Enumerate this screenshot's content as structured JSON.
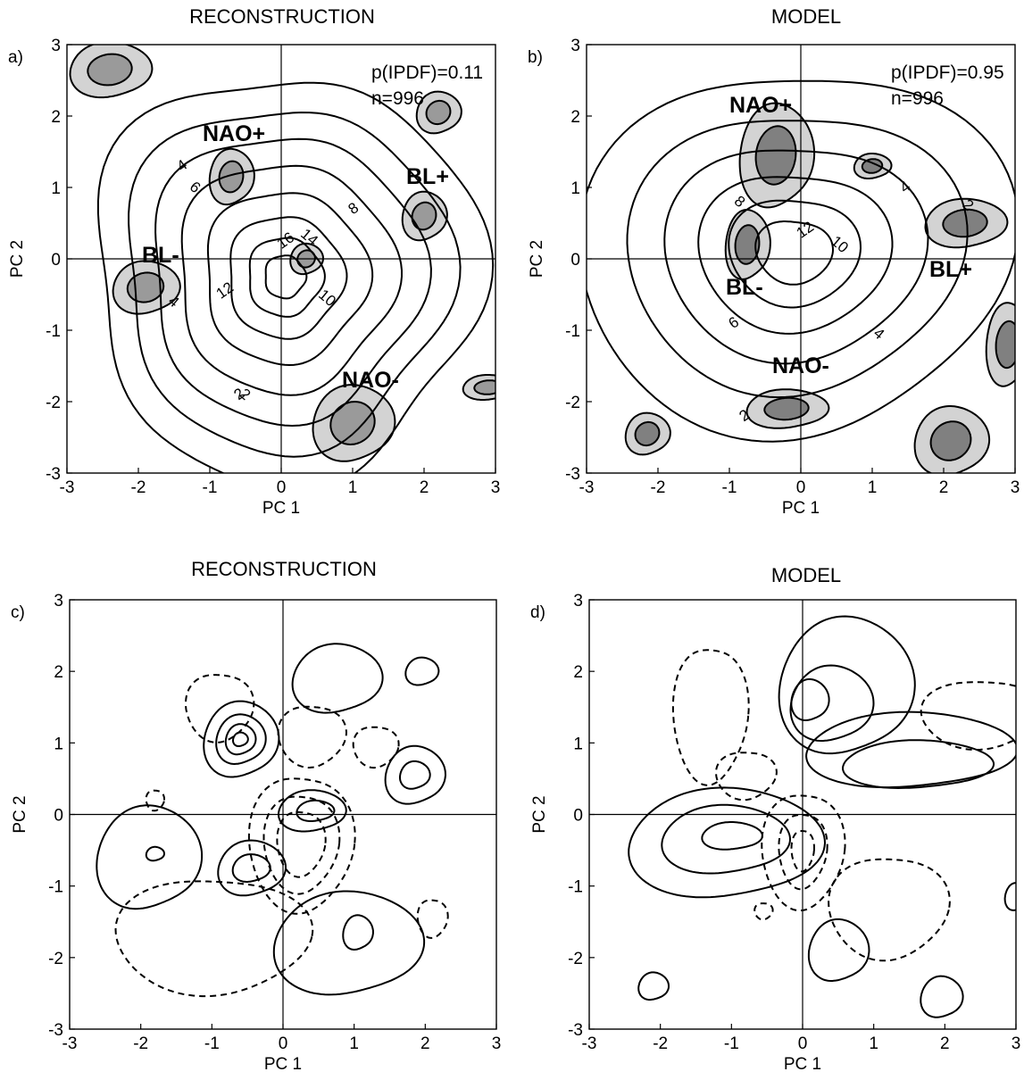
{
  "panels": [
    {
      "letter": "a)",
      "title": "RECONSTRUCTION",
      "xlabel": "PC 1",
      "ylabel": "PC 2",
      "annotations": [
        "p(IPDF)=0.11",
        "n=996"
      ],
      "regimes": [
        "NAO+",
        "BL+",
        "BL-",
        "NAO-"
      ],
      "contour_labels": [
        "2",
        "4",
        "6",
        "8",
        "10",
        "12",
        "14",
        "16",
        "4",
        "2"
      ]
    },
    {
      "letter": "b)",
      "title": "MODEL",
      "xlabel": "PC 1",
      "ylabel": "PC 2",
      "annotations": [
        "p(IPDF)=0.95",
        "n=996"
      ],
      "regimes": [
        "NAO+",
        "BL+",
        "BL-",
        "NAO-"
      ],
      "contour_labels": [
        "8",
        "4",
        "2",
        "12",
        "10",
        "6",
        "4",
        "2"
      ]
    },
    {
      "letter": "c)",
      "title": "RECONSTRUCTION",
      "xlabel": "PC 1",
      "ylabel": "PC 2",
      "annotations": [],
      "regimes": [],
      "contour_labels": []
    },
    {
      "letter": "d)",
      "title": "MODEL",
      "xlabel": "PC 1",
      "ylabel": "PC 2",
      "annotations": [],
      "regimes": [],
      "contour_labels": []
    }
  ],
  "chart_data": [
    {
      "type": "contour",
      "title": "RECONSTRUCTION",
      "xlabel": "PC 1",
      "ylabel": "PC 2",
      "xlim": [
        -3,
        3
      ],
      "ylim": [
        -3,
        3
      ],
      "xticks": [
        -3,
        -2,
        -1,
        0,
        1,
        2,
        3
      ],
      "yticks": [
        -3,
        -2,
        -1,
        0,
        1,
        2,
        3
      ],
      "contour_levels": [
        2,
        4,
        6,
        8,
        10,
        12,
        14,
        16
      ],
      "center": [
        0.0,
        -0.3
      ],
      "regime_labels": [
        {
          "text": "NAO+",
          "x": -1.1,
          "y": 1.65
        },
        {
          "text": "BL+",
          "x": 1.75,
          "y": 1.05
        },
        {
          "text": "BL-",
          "x": -1.95,
          "y": -0.05
        },
        {
          "text": "NAO-",
          "x": 0.85,
          "y": -1.8
        }
      ]
    },
    {
      "type": "contour",
      "title": "MODEL",
      "xlabel": "PC 1",
      "ylabel": "PC 2",
      "xlim": [
        -3,
        3
      ],
      "ylim": [
        -3,
        3
      ],
      "xticks": [
        -3,
        -2,
        -1,
        0,
        1,
        2,
        3
      ],
      "yticks": [
        -3,
        -2,
        -1,
        0,
        1,
        2,
        3
      ],
      "contour_levels": [
        2,
        4,
        6,
        8,
        10,
        12
      ],
      "center": [
        -0.2,
        0.1
      ],
      "regime_labels": [
        {
          "text": "NAO+",
          "x": -1.0,
          "y": 2.05
        },
        {
          "text": "BL+",
          "x": 1.8,
          "y": -0.25
        },
        {
          "text": "BL-",
          "x": -1.05,
          "y": -0.5
        },
        {
          "text": "NAO-",
          "x": -0.4,
          "y": -1.6
        }
      ]
    },
    {
      "type": "contour",
      "title": "RECONSTRUCTION",
      "xlabel": "PC 1",
      "ylabel": "PC 2",
      "xlim": [
        -3,
        3
      ],
      "ylim": [
        -3,
        3
      ],
      "xticks": [
        -3,
        -2,
        -1,
        0,
        1,
        2,
        3
      ],
      "yticks": [
        -3,
        -2,
        -1,
        0,
        1,
        2,
        3
      ],
      "line_styles": {
        "positive": "solid",
        "negative": "dashed"
      }
    },
    {
      "type": "contour",
      "title": "MODEL",
      "xlabel": "PC 1",
      "ylabel": "PC 2",
      "xlim": [
        -3,
        3
      ],
      "ylim": [
        -3,
        3
      ],
      "xticks": [
        -3,
        -2,
        -1,
        0,
        1,
        2,
        3
      ],
      "yticks": [
        -3,
        -2,
        -1,
        0,
        1,
        2,
        3
      ],
      "line_styles": {
        "positive": "solid",
        "negative": "dashed"
      }
    }
  ]
}
